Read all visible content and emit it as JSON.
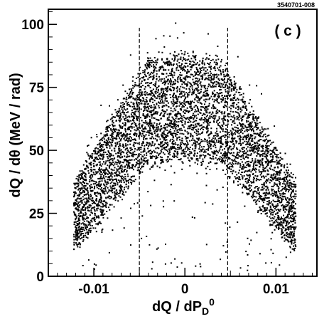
{
  "figure_id": "3540701-008",
  "chart_data": {
    "type": "scatter",
    "panel_label": "( c )",
    "xlabel_main": "dQ / dP",
    "xlabel_sub": "D",
    "xlabel_sup": "0",
    "ylabel": "dQ / dθ (MeV / rad)",
    "xlim": [
      -0.015,
      0.0145
    ],
    "ylim": [
      0,
      106
    ],
    "x_ticks": [
      {
        "value": -0.01,
        "label": "-0.01"
      },
      {
        "value": 0,
        "label": "0"
      },
      {
        "value": 0.01,
        "label": "0.01"
      }
    ],
    "y_ticks": [
      {
        "value": 0,
        "label": "0"
      },
      {
        "value": 25,
        "label": "25"
      },
      {
        "value": 50,
        "label": "50"
      },
      {
        "value": 75,
        "label": "75"
      },
      {
        "value": 100,
        "label": "100"
      }
    ],
    "cut_lines_x": [
      -0.005,
      0.0047
    ],
    "cut_lines_y_range": [
      0,
      99
    ],
    "grid": false,
    "point_color": "#000000",
    "distribution_description_points": {
      "ridge_peak": [
        0,
        75
      ],
      "left_edge": [
        -0.012,
        10
      ],
      "right_edge": [
        0.0115,
        10
      ],
      "inner_void_top": [
        0,
        48
      ]
    }
  }
}
